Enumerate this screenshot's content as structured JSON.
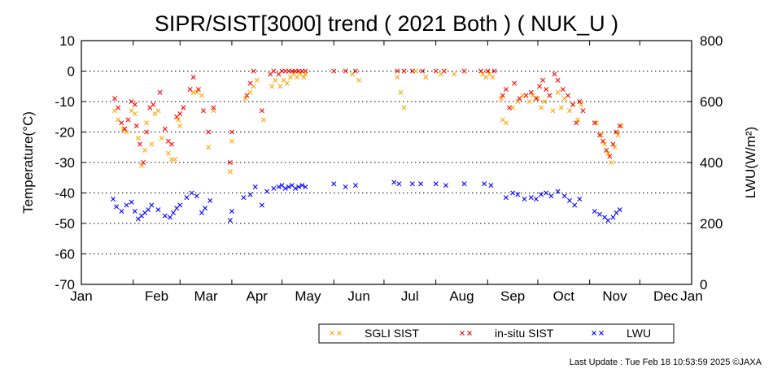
{
  "chart_data": {
    "type": "scatter",
    "title": "SIPR/SIST[3000] trend ( 2021 Both ) ( NUK_U )",
    "ylabel": "Temperature(°C)",
    "y2label": "LWU(W/m²)",
    "xlim": [
      "2021-01-01",
      "2022-01-01"
    ],
    "ylim": [
      -70,
      10
    ],
    "y2lim": [
      0,
      800
    ],
    "x_tick_labels": [
      "Jan",
      "Feb",
      "Mar",
      "Apr",
      "May",
      "Jun",
      "Jul",
      "Aug",
      "Sep",
      "Oct",
      "Nov",
      "Dec",
      "Jan"
    ],
    "y_ticks": [
      10,
      0,
      -10,
      -20,
      -30,
      -40,
      -50,
      -60,
      -70
    ],
    "y2_ticks": [
      800,
      600,
      400,
      200,
      0
    ],
    "grid": true,
    "grid_style": "dotted horizontal",
    "legend_position": "bottom-right, below plot",
    "marker": "x",
    "series": [
      {
        "name": "SGLI SIST",
        "axis": "left",
        "color": "#ffa500",
        "points": [
          [
            "2021-01-21",
            -13
          ],
          [
            "2021-01-23",
            -16
          ],
          [
            "2021-01-26",
            -19
          ],
          [
            "2021-01-28",
            -20
          ],
          [
            "2021-01-31",
            -13
          ],
          [
            "2021-02-02",
            -14
          ],
          [
            "2021-02-04",
            -22
          ],
          [
            "2021-02-06",
            -31
          ],
          [
            "2021-02-08",
            -26
          ],
          [
            "2021-02-09",
            -17
          ],
          [
            "2021-02-12",
            -24
          ],
          [
            "2021-02-14",
            -14
          ],
          [
            "2021-02-16",
            -13
          ],
          [
            "2021-02-18",
            -22
          ],
          [
            "2021-02-22",
            -27
          ],
          [
            "2021-02-24",
            -29
          ],
          [
            "2021-02-26",
            -29
          ],
          [
            "2021-02-28",
            -16
          ],
          [
            "2021-03-01",
            -18
          ],
          [
            "2021-03-03",
            -12
          ],
          [
            "2021-03-09",
            -7
          ],
          [
            "2021-03-11",
            -7
          ],
          [
            "2021-03-14",
            -8
          ],
          [
            "2021-03-18",
            -25
          ],
          [
            "2021-03-21",
            -13
          ],
          [
            "2021-03-31",
            -33
          ],
          [
            "2021-04-01",
            -23
          ],
          [
            "2021-04-09",
            -9
          ],
          [
            "2021-04-12",
            -7
          ],
          [
            "2021-04-14",
            -5
          ],
          [
            "2021-04-16",
            -3
          ],
          [
            "2021-04-20",
            -16
          ],
          [
            "2021-04-25",
            -5
          ],
          [
            "2021-04-27",
            -3
          ],
          [
            "2021-04-30",
            -5
          ],
          [
            "2021-05-02",
            -3
          ],
          [
            "2021-05-04",
            -4
          ],
          [
            "2021-05-06",
            -2
          ],
          [
            "2021-05-08",
            -1
          ],
          [
            "2021-05-10",
            -2
          ],
          [
            "2021-05-12",
            -1
          ],
          [
            "2021-05-14",
            -2
          ],
          [
            "2021-05-15",
            -1
          ],
          [
            "2021-06-12",
            -1
          ],
          [
            "2021-06-16",
            -3
          ],
          [
            "2021-07-09",
            -2
          ],
          [
            "2021-07-11",
            -7
          ],
          [
            "2021-07-13",
            -12
          ],
          [
            "2021-07-20",
            0
          ],
          [
            "2021-07-26",
            -2
          ],
          [
            "2021-08-04",
            -1
          ],
          [
            "2021-08-12",
            -1
          ],
          [
            "2021-08-29",
            -1
          ],
          [
            "2021-08-31",
            -2
          ],
          [
            "2021-09-02",
            -1
          ],
          [
            "2021-09-04",
            -2
          ],
          [
            "2021-09-09",
            -9
          ],
          [
            "2021-09-10",
            -16
          ],
          [
            "2021-09-12",
            -17
          ],
          [
            "2021-09-16",
            -12
          ],
          [
            "2021-09-19",
            -10
          ],
          [
            "2021-09-22",
            -8
          ],
          [
            "2021-09-26",
            -10
          ],
          [
            "2021-09-28",
            -8
          ],
          [
            "2021-10-01",
            -9
          ],
          [
            "2021-10-03",
            -12
          ],
          [
            "2021-10-05",
            -10
          ],
          [
            "2021-10-08",
            -8
          ],
          [
            "2021-10-10",
            -13
          ],
          [
            "2021-10-13",
            -7
          ],
          [
            "2021-10-15",
            -12
          ],
          [
            "2021-10-17",
            -9
          ],
          [
            "2021-10-20",
            -13
          ],
          [
            "2021-10-22",
            -11
          ],
          [
            "2021-10-25",
            -16
          ],
          [
            "2021-10-27",
            -11
          ],
          [
            "2021-11-05",
            -17
          ],
          [
            "2021-11-08",
            -21
          ],
          [
            "2021-11-10",
            -24
          ],
          [
            "2021-11-12",
            -27
          ],
          [
            "2021-11-14",
            -30
          ],
          [
            "2021-11-16",
            -25
          ],
          [
            "2021-11-18",
            -21
          ],
          [
            "2021-11-20",
            -18
          ]
        ]
      },
      {
        "name": "in-situ SIST",
        "axis": "left",
        "color": "#ff0000",
        "points": [
          [
            "2021-01-21",
            -9
          ],
          [
            "2021-01-23",
            -12
          ],
          [
            "2021-01-25",
            -17
          ],
          [
            "2021-01-27",
            -19
          ],
          [
            "2021-01-29",
            -16
          ],
          [
            "2021-01-31",
            -10
          ],
          [
            "2021-02-02",
            -11
          ],
          [
            "2021-02-03",
            -18
          ],
          [
            "2021-02-05",
            -24
          ],
          [
            "2021-02-07",
            -30
          ],
          [
            "2021-02-09",
            -20
          ],
          [
            "2021-02-11",
            -12
          ],
          [
            "2021-02-13",
            -11
          ],
          [
            "2021-02-17",
            -7
          ],
          [
            "2021-02-20",
            -19
          ],
          [
            "2021-02-22",
            -23
          ],
          [
            "2021-02-24",
            -24
          ],
          [
            "2021-02-27",
            -15
          ],
          [
            "2021-03-01",
            -14
          ],
          [
            "2021-03-03",
            -12
          ],
          [
            "2021-03-07",
            -6
          ],
          [
            "2021-03-09",
            -2
          ],
          [
            "2021-03-12",
            -6
          ],
          [
            "2021-03-15",
            -13
          ],
          [
            "2021-03-18",
            -20
          ],
          [
            "2021-03-21",
            -12
          ],
          [
            "2021-03-31",
            -30
          ],
          [
            "2021-04-01",
            -20
          ],
          [
            "2021-04-10",
            -8
          ],
          [
            "2021-04-12",
            -4
          ],
          [
            "2021-04-14",
            0
          ],
          [
            "2021-04-19",
            -13
          ],
          [
            "2021-04-24",
            -1
          ],
          [
            "2021-04-26",
            0
          ],
          [
            "2021-04-29",
            -1
          ],
          [
            "2021-05-01",
            0
          ],
          [
            "2021-05-03",
            0
          ],
          [
            "2021-05-05",
            0
          ],
          [
            "2021-05-07",
            0
          ],
          [
            "2021-05-09",
            0
          ],
          [
            "2021-05-11",
            0
          ],
          [
            "2021-05-13",
            0
          ],
          [
            "2021-05-15",
            0
          ],
          [
            "2021-06-01",
            0
          ],
          [
            "2021-06-08",
            0
          ],
          [
            "2021-06-14",
            0
          ],
          [
            "2021-07-09",
            0
          ],
          [
            "2021-07-13",
            0
          ],
          [
            "2021-07-18",
            0
          ],
          [
            "2021-07-24",
            0
          ],
          [
            "2021-08-01",
            0
          ],
          [
            "2021-08-06",
            0
          ],
          [
            "2021-08-18",
            0
          ],
          [
            "2021-08-28",
            0
          ],
          [
            "2021-09-01",
            0
          ],
          [
            "2021-09-05",
            0
          ],
          [
            "2021-09-10",
            -8
          ],
          [
            "2021-09-12",
            -6
          ],
          [
            "2021-09-14",
            -12
          ],
          [
            "2021-09-17",
            -4
          ],
          [
            "2021-09-20",
            -9
          ],
          [
            "2021-09-24",
            -8
          ],
          [
            "2021-09-27",
            -7
          ],
          [
            "2021-09-30",
            -9
          ],
          [
            "2021-10-02",
            -5
          ],
          [
            "2021-10-04",
            -3
          ],
          [
            "2021-10-06",
            -6
          ],
          [
            "2021-10-08",
            -8
          ],
          [
            "2021-10-11",
            -1
          ],
          [
            "2021-10-13",
            -3
          ],
          [
            "2021-10-16",
            -6
          ],
          [
            "2021-10-19",
            -8
          ],
          [
            "2021-10-22",
            -11
          ],
          [
            "2021-10-24",
            -17
          ],
          [
            "2021-10-26",
            -10
          ],
          [
            "2021-10-28",
            -13
          ],
          [
            "2021-11-04",
            -17
          ],
          [
            "2021-11-07",
            -21
          ],
          [
            "2021-11-09",
            -23
          ],
          [
            "2021-11-11",
            -26
          ],
          [
            "2021-11-13",
            -28
          ],
          [
            "2021-11-15",
            -24
          ],
          [
            "2021-11-17",
            -20
          ],
          [
            "2021-11-19",
            -18
          ]
        ]
      },
      {
        "name": "LWU",
        "axis": "right",
        "color": "#0000ff",
        "points": [
          [
            "2021-01-20",
            280
          ],
          [
            "2021-01-22",
            255
          ],
          [
            "2021-01-25",
            240
          ],
          [
            "2021-01-28",
            260
          ],
          [
            "2021-01-31",
            270
          ],
          [
            "2021-02-02",
            240
          ],
          [
            "2021-02-04",
            215
          ],
          [
            "2021-02-06",
            225
          ],
          [
            "2021-02-08",
            235
          ],
          [
            "2021-02-10",
            245
          ],
          [
            "2021-02-12",
            260
          ],
          [
            "2021-02-16",
            245
          ],
          [
            "2021-02-20",
            225
          ],
          [
            "2021-02-23",
            220
          ],
          [
            "2021-02-25",
            235
          ],
          [
            "2021-02-27",
            250
          ],
          [
            "2021-03-01",
            260
          ],
          [
            "2021-03-05",
            285
          ],
          [
            "2021-03-08",
            300
          ],
          [
            "2021-03-11",
            290
          ],
          [
            "2021-03-14",
            235
          ],
          [
            "2021-03-16",
            250
          ],
          [
            "2021-03-19",
            275
          ],
          [
            "2021-03-31",
            210
          ],
          [
            "2021-04-01",
            240
          ],
          [
            "2021-04-08",
            285
          ],
          [
            "2021-04-12",
            295
          ],
          [
            "2021-04-15",
            320
          ],
          [
            "2021-04-19",
            260
          ],
          [
            "2021-04-22",
            305
          ],
          [
            "2021-04-26",
            315
          ],
          [
            "2021-04-29",
            320
          ],
          [
            "2021-05-01",
            325
          ],
          [
            "2021-05-03",
            315
          ],
          [
            "2021-05-05",
            320
          ],
          [
            "2021-05-07",
            325
          ],
          [
            "2021-05-09",
            315
          ],
          [
            "2021-05-11",
            320
          ],
          [
            "2021-05-13",
            325
          ],
          [
            "2021-05-15",
            320
          ],
          [
            "2021-06-01",
            330
          ],
          [
            "2021-06-08",
            320
          ],
          [
            "2021-06-14",
            325
          ],
          [
            "2021-07-07",
            335
          ],
          [
            "2021-07-10",
            330
          ],
          [
            "2021-07-18",
            330
          ],
          [
            "2021-07-23",
            330
          ],
          [
            "2021-08-01",
            330
          ],
          [
            "2021-08-07",
            325
          ],
          [
            "2021-08-18",
            330
          ],
          [
            "2021-08-30",
            330
          ],
          [
            "2021-09-03",
            325
          ],
          [
            "2021-09-12",
            285
          ],
          [
            "2021-09-16",
            300
          ],
          [
            "2021-09-19",
            295
          ],
          [
            "2021-09-23",
            280
          ],
          [
            "2021-09-27",
            285
          ],
          [
            "2021-09-30",
            280
          ],
          [
            "2021-10-03",
            295
          ],
          [
            "2021-10-06",
            300
          ],
          [
            "2021-10-09",
            290
          ],
          [
            "2021-10-13",
            305
          ],
          [
            "2021-10-17",
            290
          ],
          [
            "2021-10-20",
            275
          ],
          [
            "2021-10-23",
            260
          ],
          [
            "2021-10-26",
            280
          ],
          [
            "2021-11-04",
            240
          ],
          [
            "2021-11-07",
            230
          ],
          [
            "2021-11-10",
            220
          ],
          [
            "2021-11-12",
            210
          ],
          [
            "2021-11-15",
            220
          ],
          [
            "2021-11-17",
            235
          ],
          [
            "2021-11-19",
            245
          ]
        ]
      }
    ]
  },
  "footer": {
    "last_update": "Last Update : Tue Feb 18 10:53:59 2025  ©JAXA"
  }
}
